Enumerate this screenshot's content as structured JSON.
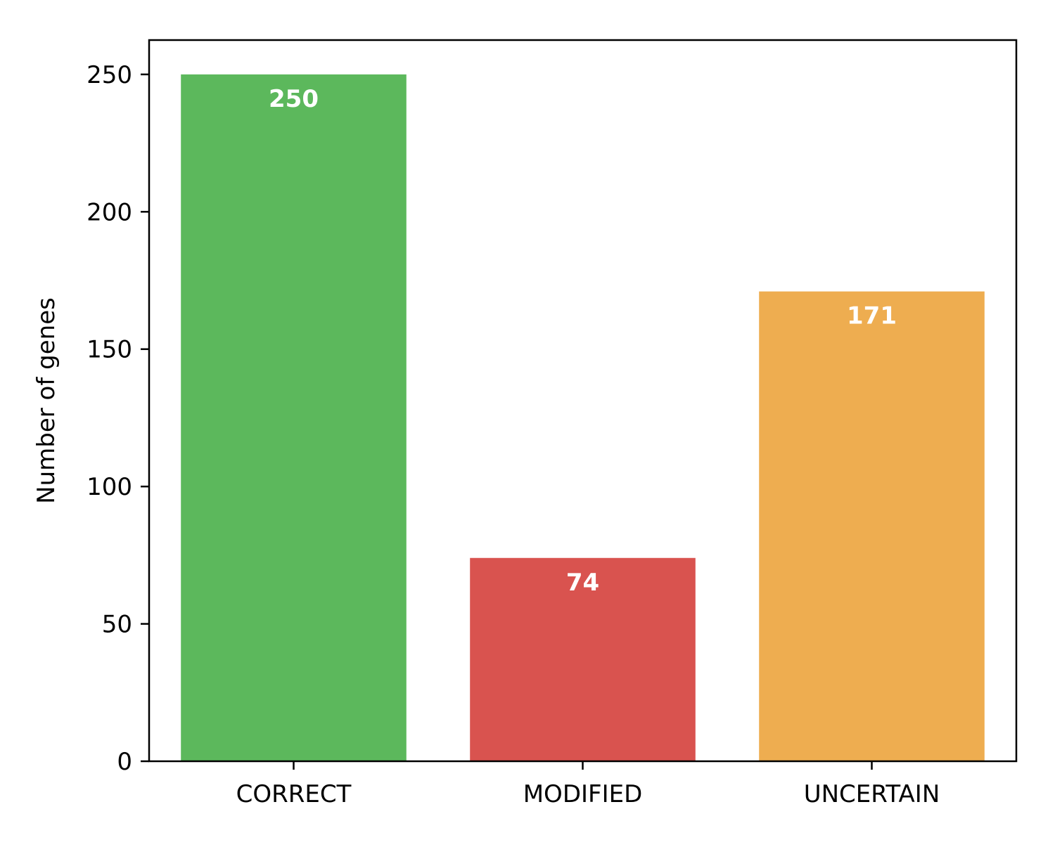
{
  "chart_data": {
    "type": "bar",
    "categories": [
      "CORRECT",
      "MODIFIED",
      "UNCERTAIN"
    ],
    "values": [
      250,
      74,
      171
    ],
    "bar_colors": [
      "#5cb85c",
      "#d9534f",
      "#eead50"
    ],
    "data_labels": [
      "250",
      "74",
      "171"
    ],
    "title": "",
    "xlabel": "",
    "ylabel": "Number of genes",
    "ylim": [
      0,
      262.5
    ],
    "yticks": [
      0,
      50,
      100,
      150,
      200,
      250
    ],
    "ytick_labels": [
      "0",
      "50",
      "100",
      "150",
      "200",
      "250"
    ],
    "grid": false,
    "legend": false
  }
}
